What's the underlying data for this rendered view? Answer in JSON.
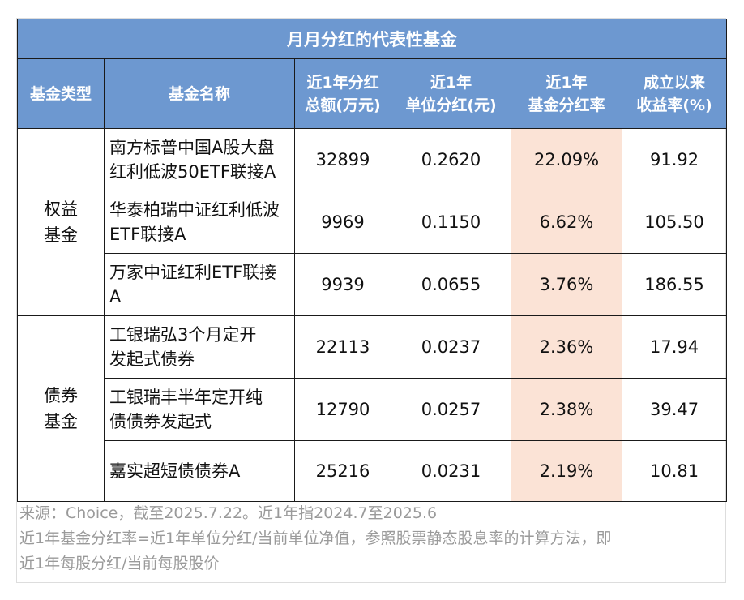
{
  "title": "月月分红的代表性基金",
  "headers": [
    {
      "line1": "基金类型",
      "line2": ""
    },
    {
      "line1": "基金名称",
      "line2": ""
    },
    {
      "line1": "近1年分红",
      "line2": "总额(万元)"
    },
    {
      "line1": "近1年",
      "line2": "单位分红(元)"
    },
    {
      "line1": "近1年",
      "line2": "基金分红率"
    },
    {
      "line1": "成立以来",
      "line2": "收益率(%)"
    }
  ],
  "groups": [
    {
      "type_line1": "权益",
      "type_line2": "基金"
    },
    {
      "type_line1": "债券",
      "type_line2": "基金"
    }
  ],
  "rows": [
    {
      "name_line1": "南方标普中国A股大盘",
      "name_line2": "红利低波50ETF联接A",
      "total": "32899",
      "unit": "0.2620",
      "rate": "22.09%",
      "return": "91.92"
    },
    {
      "name_line1": "华泰柏瑞中证红利低波",
      "name_line2": "ETF联接A",
      "total": "9969",
      "unit": "0.1150",
      "rate": "6.62%",
      "return": "105.50"
    },
    {
      "name_line1": "万家中证红利ETF联接",
      "name_line2": "A",
      "total": "9939",
      "unit": "0.0655",
      "rate": "3.76%",
      "return": "186.55"
    },
    {
      "name_line1": "工银瑞弘3个月定开",
      "name_line2": "发起式债券",
      "total": "22113",
      "unit": "0.0237",
      "rate": "2.36%",
      "return": "17.94"
    },
    {
      "name_line1": "工银瑞丰半年定开纯",
      "name_line2": "债债券发起式",
      "total": "12790",
      "unit": "0.0257",
      "rate": "2.38%",
      "return": "39.47"
    },
    {
      "name_line1": "嘉实超短债债券A",
      "name_line2": "",
      "total": "25216",
      "unit": "0.0231",
      "rate": "2.19%",
      "return": "10.81"
    }
  ],
  "notes": [
    "来源：Choice，截至2025.7.22。近1年指2024.7至2025.6",
    "近1年基金分红率=近1年单位分红/当前单位净值，参照股票静态股息率的计算方法，即",
    "近1年每股分红/当前每股股价"
  ]
}
